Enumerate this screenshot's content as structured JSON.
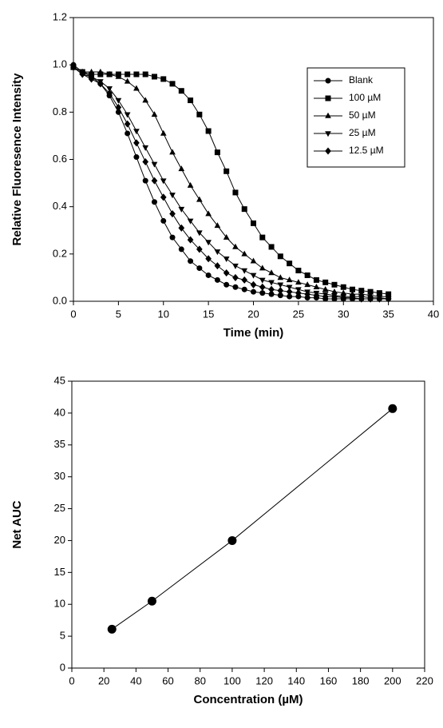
{
  "chart_data": [
    {
      "type": "line",
      "xlabel": "Time (min)",
      "ylabel": "Relative Fluoresence Intensity",
      "x": [
        0,
        1,
        2,
        3,
        4,
        5,
        6,
        7,
        8,
        9,
        10,
        11,
        12,
        13,
        14,
        15,
        16,
        17,
        18,
        19,
        20,
        21,
        22,
        23,
        24,
        25,
        26,
        27,
        28,
        29,
        30,
        31,
        32,
        33,
        34,
        35
      ],
      "xlim": [
        0,
        40
      ],
      "xticks": [
        0,
        5,
        10,
        15,
        20,
        25,
        30,
        35,
        40
      ],
      "ylim": [
        0,
        1.2
      ],
      "yticks": [
        {
          "value": 0,
          "label": "0.0"
        },
        0.2,
        0.4,
        0.6,
        0.8,
        {
          "value": 1,
          "label": "1.0"
        },
        1.2
      ],
      "legend": "upper right",
      "series": [
        {
          "name": "Blank",
          "color": "#000000",
          "marker": "circle",
          "values": [
            1.0,
            0.97,
            0.95,
            0.92,
            0.87,
            0.8,
            0.71,
            0.61,
            0.51,
            0.42,
            0.34,
            0.27,
            0.22,
            0.17,
            0.14,
            0.11,
            0.09,
            0.07,
            0.06,
            0.05,
            0.04,
            0.035,
            0.03,
            0.025,
            0.02,
            0.02,
            0.015,
            0.015,
            0.01,
            0.01,
            0.01,
            0.01,
            0.01,
            0.01,
            0.01,
            0.01
          ]
        },
        {
          "name": "100 µM",
          "color": "#000000",
          "marker": "square",
          "values": [
            0.99,
            0.97,
            0.96,
            0.96,
            0.96,
            0.96,
            0.96,
            0.96,
            0.96,
            0.95,
            0.94,
            0.92,
            0.89,
            0.85,
            0.79,
            0.72,
            0.63,
            0.55,
            0.46,
            0.39,
            0.33,
            0.27,
            0.23,
            0.19,
            0.16,
            0.13,
            0.11,
            0.09,
            0.08,
            0.07,
            0.06,
            0.05,
            0.045,
            0.04,
            0.035,
            0.03
          ]
        },
        {
          "name": "50 µM",
          "color": "#000000",
          "marker": "triangle-up",
          "values": [
            0.99,
            0.97,
            0.97,
            0.97,
            0.96,
            0.95,
            0.93,
            0.9,
            0.85,
            0.79,
            0.71,
            0.63,
            0.56,
            0.49,
            0.43,
            0.37,
            0.32,
            0.27,
            0.23,
            0.2,
            0.17,
            0.14,
            0.12,
            0.1,
            0.09,
            0.08,
            0.07,
            0.06,
            0.05,
            0.04,
            0.035,
            0.03,
            0.03,
            0.025,
            0.02,
            0.02
          ]
        },
        {
          "name": "25 µM",
          "color": "#000000",
          "marker": "triangle-down",
          "values": [
            0.99,
            0.96,
            0.95,
            0.93,
            0.9,
            0.85,
            0.79,
            0.72,
            0.65,
            0.58,
            0.51,
            0.45,
            0.39,
            0.34,
            0.29,
            0.25,
            0.21,
            0.18,
            0.15,
            0.13,
            0.11,
            0.09,
            0.08,
            0.07,
            0.06,
            0.05,
            0.04,
            0.035,
            0.03,
            0.025,
            0.02,
            0.02,
            0.02,
            0.015,
            0.015,
            0.01
          ]
        },
        {
          "name": "12.5 µM",
          "color": "#000000",
          "marker": "diamond",
          "values": [
            0.99,
            0.96,
            0.94,
            0.92,
            0.88,
            0.82,
            0.75,
            0.67,
            0.59,
            0.51,
            0.44,
            0.37,
            0.31,
            0.26,
            0.22,
            0.18,
            0.15,
            0.12,
            0.1,
            0.09,
            0.07,
            0.06,
            0.05,
            0.045,
            0.04,
            0.035,
            0.03,
            0.025,
            0.02,
            0.02,
            0.015,
            0.015,
            0.01,
            0.01,
            0.01,
            0.01
          ]
        }
      ]
    },
    {
      "type": "line",
      "xlabel": "Concentration (µM)",
      "ylabel": "Net AUC",
      "x": [
        25,
        50,
        100,
        200
      ],
      "xlim": [
        0,
        220
      ],
      "xticks": [
        0,
        20,
        40,
        60,
        80,
        100,
        120,
        140,
        160,
        180,
        200,
        220
      ],
      "ylim": [
        0,
        45
      ],
      "yticks": [
        0,
        5,
        10,
        15,
        20,
        25,
        30,
        35,
        40,
        45
      ],
      "series": [
        {
          "color": "#000000",
          "marker": "circle",
          "values": [
            6.1,
            10.5,
            20.0,
            40.7
          ]
        }
      ]
    }
  ]
}
